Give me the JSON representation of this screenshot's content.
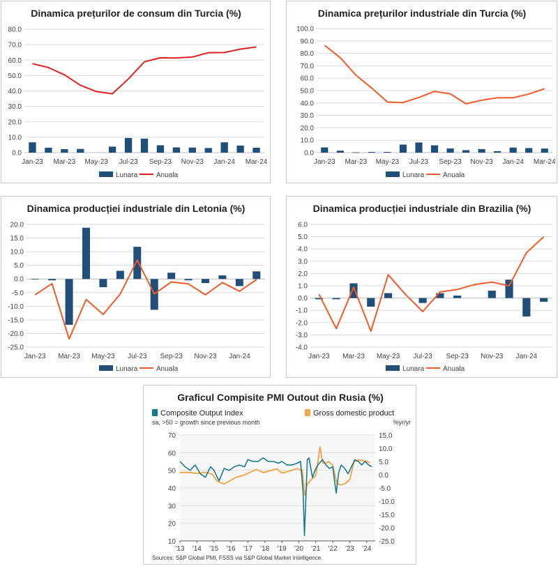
{
  "colors": {
    "bar": "#1f4e79",
    "line_red": "#e02020",
    "line_orange": "#f05a28",
    "pmi": "#1a7a8c",
    "gdp": "#f0a850"
  },
  "chart_data": [
    {
      "id": "c1",
      "type": "bar+line",
      "title": "Dinamica prețurilor de consum din Turcia (%)",
      "categories": [
        "Jan-23",
        "Feb-23",
        "Mar-23",
        "Apr-23",
        "May-23",
        "Jun-23",
        "Jul-23",
        "Aug-23",
        "Sep-23",
        "Oct-23",
        "Nov-23",
        "Dec-23",
        "Jan-24",
        "Feb-24",
        "Mar-24"
      ],
      "tick_labels": [
        "Jan-23",
        "Mar-23",
        "May-23",
        "Jul-23",
        "Sep-23",
        "Nov-23",
        "Jan-24",
        "Mar-24"
      ],
      "ylim": [
        0,
        80
      ],
      "yticks": [
        "0.0",
        "10.0",
        "20.0",
        "30.0",
        "40.0",
        "50.0",
        "60.0",
        "70.0",
        "80.0"
      ],
      "series": [
        {
          "name": "Lunara",
          "kind": "bar",
          "values": [
            6.7,
            3.2,
            2.3,
            2.4,
            0.0,
            3.9,
            9.5,
            9.1,
            4.8,
            3.4,
            3.3,
            3.0,
            6.7,
            4.6,
            3.2
          ]
        },
        {
          "name": "Anuala",
          "kind": "line",
          "color": "#e02020",
          "values": [
            57.7,
            55.2,
            50.5,
            43.7,
            39.6,
            38.2,
            47.8,
            58.9,
            61.5,
            61.4,
            62.0,
            64.8,
            64.9,
            67.1,
            68.5
          ]
        }
      ]
    },
    {
      "id": "c2",
      "type": "bar+line",
      "title": "Dinamica prețurilor industriale din Turcia (%)",
      "categories": [
        "Jan-23",
        "Feb-23",
        "Mar-23",
        "Apr-23",
        "May-23",
        "Jun-23",
        "Jul-23",
        "Aug-23",
        "Sep-23",
        "Oct-23",
        "Nov-23",
        "Dec-23",
        "Jan-24",
        "Feb-24",
        "Mar-24"
      ],
      "tick_labels": [
        "Jan-23",
        "Mar-23",
        "May-23",
        "Jul-23",
        "Sep-23",
        "Nov-23",
        "Jan-24",
        "Mar-24"
      ],
      "ylim": [
        0,
        100
      ],
      "yticks": [
        "0.0",
        "10.0",
        "20.0",
        "30.0",
        "40.0",
        "50.0",
        "60.0",
        "70.0",
        "80.0",
        "90.0",
        "100.0"
      ],
      "series": [
        {
          "name": "Lunara",
          "kind": "bar",
          "values": [
            4.2,
            1.6,
            0.3,
            0.6,
            0.6,
            6.5,
            8.2,
            5.9,
            3.4,
            2.0,
            2.9,
            1.2,
            4.1,
            3.7,
            3.3
          ]
        },
        {
          "name": "Anuala",
          "kind": "line",
          "color": "#f05a28",
          "values": [
            86.5,
            76.6,
            62.4,
            52.1,
            40.8,
            40.4,
            44.5,
            49.4,
            47.4,
            39.4,
            42.3,
            44.2,
            44.2,
            47.3,
            51.5
          ]
        }
      ]
    },
    {
      "id": "c3",
      "type": "bar+line",
      "title": "Dinamica producției industriale din Letonia (%)",
      "categories": [
        "Jan-23",
        "Feb-23",
        "Mar-23",
        "Apr-23",
        "May-23",
        "Jun-23",
        "Jul-23",
        "Aug-23",
        "Sep-23",
        "Oct-23",
        "Nov-23",
        "Dec-23",
        "Jan-24",
        "Feb-24"
      ],
      "tick_labels": [
        "Jan-23",
        "Mar-23",
        "May-23",
        "Jul-23",
        "Sep-23",
        "Nov-23",
        "Jan-24"
      ],
      "ylim": [
        -25,
        20
      ],
      "yticks": [
        "-25.0",
        "-20.0",
        "-15.0",
        "-10.0",
        "-5.0",
        "0.0",
        "5.0",
        "10.0",
        "15.0",
        "20.0"
      ],
      "series": [
        {
          "name": "Lunara",
          "kind": "bar",
          "values": [
            -0.2,
            -0.5,
            -16.8,
            18.8,
            -3.0,
            3.0,
            11.8,
            -11.3,
            2.3,
            -0.5,
            -1.5,
            1.3,
            -2.6,
            2.8
          ]
        },
        {
          "name": "Anuala",
          "kind": "line",
          "color": "#f05a28",
          "values": [
            -5.8,
            -1.7,
            -22.0,
            -7.5,
            -13.0,
            -5.5,
            6.9,
            -5.5,
            -1.1,
            -1.8,
            -5.8,
            -1.3,
            -4.5,
            -0.2
          ]
        }
      ]
    },
    {
      "id": "c4",
      "type": "bar+line",
      "title": "Dinamica producției industriale din Brazilia (%)",
      "categories": [
        "Jan-23",
        "Feb-23",
        "Mar-23",
        "Apr-23",
        "May-23",
        "Jun-23",
        "Jul-23",
        "Aug-23",
        "Sep-23",
        "Oct-23",
        "Nov-23",
        "Dec-23",
        "Jan-24",
        "Feb-24"
      ],
      "tick_labels": [
        "Jan-23",
        "Mar-23",
        "May-23",
        "Jul-23",
        "Sep-23",
        "Nov-23",
        "Jan-24"
      ],
      "ylim": [
        -4,
        6
      ],
      "yticks": [
        "-4.0",
        "-3.0",
        "-2.0",
        "-1.0",
        "0.0",
        "1.0",
        "2.0",
        "3.0",
        "4.0",
        "5.0",
        "6.0"
      ],
      "series": [
        {
          "name": "Lunara",
          "kind": "bar",
          "values": [
            -0.1,
            -0.1,
            1.2,
            -0.7,
            0.4,
            0.0,
            -0.4,
            0.4,
            0.2,
            0.0,
            0.6,
            1.5,
            -1.5,
            -0.3
          ]
        },
        {
          "name": "Anuala",
          "kind": "line",
          "color": "#f05a28",
          "values": [
            0.3,
            -2.5,
            0.9,
            -2.7,
            1.9,
            0.3,
            -1.1,
            0.5,
            0.7,
            1.1,
            1.3,
            1.0,
            3.7,
            5.0
          ]
        }
      ]
    },
    {
      "id": "c5",
      "type": "line",
      "dual_axis": true,
      "title": "Graficul Compisite PMI Outout din Rusia (%)",
      "left_axis": {
        "ylim": [
          10,
          70
        ],
        "yticks": [
          "10",
          "20",
          "30",
          "40",
          "50",
          "60",
          "70"
        ],
        "subtitle": "sa, >50 = growth since previous month"
      },
      "right_axis": {
        "ylim": [
          -25,
          15
        ],
        "yticks": [
          "-25.0",
          "-20.0",
          "-15.0",
          "-10.0",
          "-5.0",
          "0.0",
          "5.0",
          "10.0",
          "15.0"
        ],
        "subtitle": "%yr/yr"
      },
      "x_tick_labels": [
        "'13",
        "'14",
        "'15",
        "'16",
        "'17",
        "'18",
        "'19",
        "'20",
        "'21",
        "'22",
        "'23",
        "'24"
      ],
      "xlim": [
        2013.0,
        2024.5
      ],
      "series": [
        {
          "name": "Composite Output Index",
          "axis": "left",
          "color": "#1a7a8c",
          "x": [
            2013.0,
            2013.3,
            2013.6,
            2013.9,
            2014.2,
            2014.5,
            2014.8,
            2015.0,
            2015.3,
            2015.6,
            2015.9,
            2016.2,
            2016.5,
            2016.8,
            2017.0,
            2017.3,
            2017.6,
            2017.9,
            2018.2,
            2018.5,
            2018.8,
            2019.0,
            2019.3,
            2019.6,
            2019.9,
            2020.1,
            2020.25,
            2020.33,
            2020.42,
            2020.5,
            2020.6,
            2020.8,
            2021.0,
            2021.2,
            2021.4,
            2021.6,
            2021.8,
            2022.0,
            2022.1,
            2022.2,
            2022.35,
            2022.5,
            2022.7,
            2022.9,
            2023.1,
            2023.3,
            2023.5,
            2023.7,
            2023.9,
            2024.1,
            2024.3
          ],
          "values": [
            55,
            52,
            50,
            53,
            48,
            46,
            52,
            50,
            44,
            51,
            50,
            52,
            53,
            52,
            56,
            55,
            55,
            57,
            55,
            55,
            54,
            55,
            53,
            53,
            54,
            55,
            38,
            13,
            36,
            56,
            57,
            46,
            51,
            54,
            56,
            53,
            51,
            52,
            44,
            37,
            49,
            53,
            51,
            48,
            52,
            56,
            55,
            53,
            55,
            53,
            52
          ]
        },
        {
          "name": "Gross domestic product",
          "axis": "right",
          "color": "#f0a850",
          "x": [
            2013.0,
            2013.5,
            2014.0,
            2014.5,
            2014.9,
            2015.2,
            2015.6,
            2015.9,
            2016.3,
            2016.7,
            2017.0,
            2017.5,
            2017.9,
            2018.3,
            2018.7,
            2019.0,
            2019.5,
            2019.9,
            2020.2,
            2020.35,
            2020.5,
            2020.75,
            2021.0,
            2021.25,
            2021.4,
            2021.55,
            2021.75,
            2022.0,
            2022.25,
            2022.5,
            2022.75,
            2023.0,
            2023.25,
            2023.5,
            2023.75,
            2024.0,
            2024.2
          ],
          "values": [
            0.8,
            0.9,
            0.5,
            0.9,
            0.2,
            -2.5,
            -3.5,
            -2.5,
            -1.0,
            -0.3,
            0.5,
            2.0,
            0.8,
            1.5,
            2.2,
            0.6,
            1.5,
            2.3,
            1.6,
            -7.8,
            -3.5,
            -1.8,
            -0.3,
            10.5,
            4.5,
            4.2,
            5.0,
            3.5,
            -3.5,
            -3.8,
            -3.3,
            -1.8,
            4.9,
            5.5,
            5.3,
            5.0,
            4.5
          ]
        }
      ],
      "source": "Sources: S&P Global PMI, FSSS via S&P Global Market Intelligence."
    }
  ]
}
